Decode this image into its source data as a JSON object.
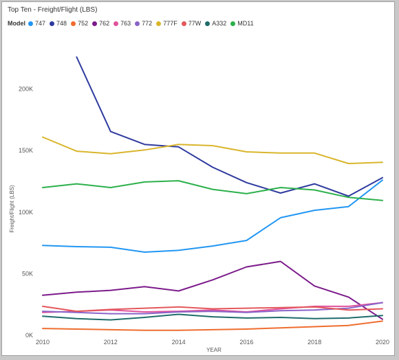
{
  "chart_data": {
    "type": "line",
    "title": "Top Ten - Freight/Flight (LBS)",
    "legend_title": "Model",
    "xlabel": "YEAR",
    "ylabel": "Freight/Flight (LBS)",
    "xlim": [
      2010,
      2020
    ],
    "ylim": [
      0,
      250000
    ],
    "x_ticks": [
      2010,
      2012,
      2014,
      2016,
      2018,
      2020
    ],
    "x_tick_labels": [
      "2010",
      "2012",
      "2014",
      "2016",
      "2018",
      "2020"
    ],
    "y_ticks": [
      0,
      50000,
      100000,
      150000,
      200000
    ],
    "y_tick_labels": [
      "0K",
      "50K",
      "100K",
      "150K",
      "200K"
    ],
    "grid": false,
    "legend_position": "top-left",
    "series": [
      {
        "name": "747",
        "color": "#2196f3",
        "x": [
          2010,
          2011,
          2012,
          2013,
          2014,
          2015,
          2016,
          2017,
          2018,
          2019,
          2020
        ],
        "values": [
          73000,
          72000,
          71500,
          67500,
          69000,
          72500,
          77000,
          95500,
          101500,
          104500,
          126000
        ]
      },
      {
        "name": "748",
        "color": "#2e3a9e",
        "x": [
          2011,
          2012,
          2013,
          2014,
          2015,
          2016,
          2017,
          2018,
          2019,
          2020
        ],
        "values": [
          226000,
          165500,
          155000,
          153000,
          136500,
          124000,
          115500,
          123000,
          113000,
          128000
        ]
      },
      {
        "name": "752",
        "color": "#ef6c2e",
        "x": [
          2010,
          2011,
          2012,
          2013,
          2014,
          2015,
          2016,
          2017,
          2018,
          2019,
          2020
        ],
        "values": [
          5500,
          5000,
          4500,
          4000,
          4000,
          4500,
          5000,
          6000,
          7000,
          8000,
          11500
        ]
      },
      {
        "name": "762",
        "color": "#7b1a8a",
        "x": [
          2010,
          2011,
          2012,
          2013,
          2014,
          2015,
          2016,
          2017,
          2018,
          2019,
          2020
        ],
        "values": [
          32500,
          35000,
          36500,
          39500,
          36000,
          45000,
          55500,
          60000,
          40000,
          31000,
          13000
        ]
      },
      {
        "name": "763",
        "color": "#e0529c",
        "x": [
          2010,
          2011,
          2012,
          2013,
          2014,
          2015,
          2016,
          2017,
          2018,
          2019,
          2020
        ],
        "values": [
          18500,
          19500,
          20500,
          19000,
          19500,
          20500,
          19000,
          21500,
          23500,
          23500,
          26500
        ]
      },
      {
        "name": "772",
        "color": "#8a63c9",
        "x": [
          2010,
          2011,
          2012,
          2013,
          2014,
          2015,
          2016,
          2017,
          2018,
          2019,
          2020
        ],
        "values": [
          19500,
          18500,
          17500,
          17500,
          19000,
          19500,
          18500,
          20000,
          20500,
          22000,
          26500
        ]
      },
      {
        "name": "777F",
        "color": "#d9b52a",
        "x": [
          2010,
          2011,
          2012,
          2013,
          2014,
          2015,
          2016,
          2017,
          2018,
          2019,
          2020
        ],
        "values": [
          161000,
          149500,
          147500,
          150500,
          155000,
          154000,
          149000,
          148000,
          148000,
          139500,
          140500
        ]
      },
      {
        "name": "77W",
        "color": "#e4575a",
        "x": [
          2010,
          2011,
          2012,
          2013,
          2014,
          2015,
          2016,
          2017,
          2018,
          2019,
          2020
        ],
        "values": [
          23500,
          19500,
          21000,
          22000,
          23000,
          21500,
          22000,
          22500,
          23000,
          20500,
          21500
        ]
      },
      {
        "name": "A332",
        "color": "#1f6b6b",
        "x": [
          2010,
          2011,
          2012,
          2013,
          2014,
          2015,
          2016,
          2017,
          2018,
          2019,
          2020
        ],
        "values": [
          15500,
          13500,
          12500,
          14500,
          17000,
          15000,
          14000,
          14500,
          13500,
          14000,
          16000
        ]
      },
      {
        "name": "MD11",
        "color": "#2bb04a",
        "x": [
          2010,
          2011,
          2012,
          2013,
          2014,
          2015,
          2016,
          2017,
          2018,
          2019,
          2020
        ],
        "values": [
          120000,
          123000,
          120000,
          124500,
          125500,
          118500,
          115000,
          120000,
          118000,
          112000,
          109500
        ]
      }
    ]
  }
}
